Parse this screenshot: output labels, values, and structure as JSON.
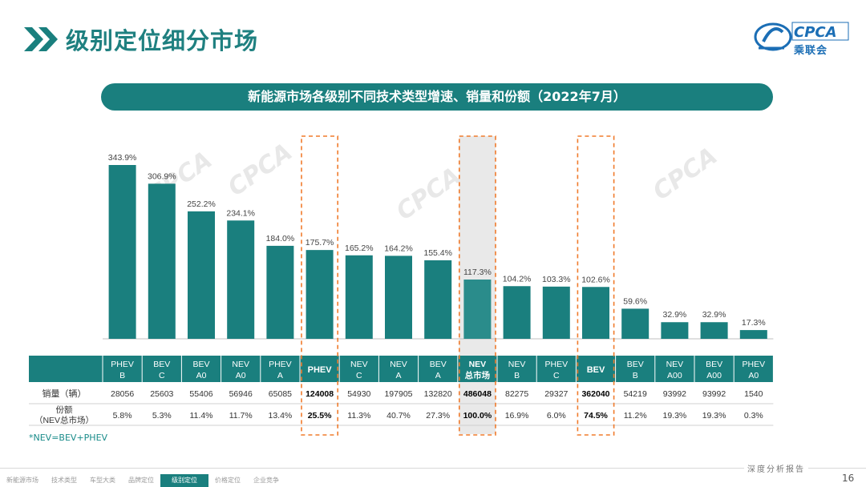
{
  "header": {
    "page_title": "级别定位细分市场",
    "logo_text": "CPCA",
    "logo_cn": "乘联会",
    "banner_title": "新能源市场各级别不同技术类型增速、销量和份额（2022年7月）"
  },
  "chart_data": {
    "type": "bar",
    "title": "新能源市场各级别不同技术类型增速、销量和份额（2022年7月）",
    "categories": [
      [
        "PHEV",
        "B"
      ],
      [
        "BEV",
        "C"
      ],
      [
        "BEV",
        "A0"
      ],
      [
        "NEV",
        "A0"
      ],
      [
        "PHEV",
        "A"
      ],
      [
        "PHEV"
      ],
      [
        "NEV",
        "C"
      ],
      [
        "NEV",
        "A"
      ],
      [
        "BEV",
        "A"
      ],
      [
        "NEV",
        "总市场"
      ],
      [
        "NEV",
        "B"
      ],
      [
        "PHEV",
        "C"
      ],
      [
        "BEV"
      ],
      [
        "BEV",
        "B"
      ],
      [
        "NEV",
        "A00"
      ],
      [
        "BEV",
        "A00"
      ],
      [
        "PHEV",
        "A0"
      ]
    ],
    "growth_values": [
      343.9,
      306.9,
      252.2,
      234.1,
      184.0,
      175.7,
      165.2,
      164.2,
      155.4,
      117.3,
      104.2,
      103.3,
      102.6,
      59.6,
      32.9,
      32.9,
      17.3
    ],
    "growth_labels": [
      "343.9%",
      "306.9%",
      "252.2%",
      "234.1%",
      "184.0%",
      "175.7%",
      "165.2%",
      "164.2%",
      "155.4%",
      "117.3%",
      "104.2%",
      "103.3%",
      "102.6%",
      "59.6%",
      "32.9%",
      "32.9%",
      "17.3%"
    ],
    "sales": [
      "28056",
      "25603",
      "55406",
      "56946",
      "65085",
      "124008",
      "54930",
      "197905",
      "132820",
      "486048",
      "82275",
      "29327",
      "362040",
      "54219",
      "93992",
      "93992",
      "1540"
    ],
    "shares": [
      "5.8%",
      "5.3%",
      "11.4%",
      "11.7%",
      "13.4%",
      "25.5%",
      "11.3%",
      "40.7%",
      "27.3%",
      "100.0%",
      "16.9%",
      "6.0%",
      "74.5%",
      "11.2%",
      "19.3%",
      "19.3%",
      "0.3%"
    ],
    "highlight_indices": [
      5,
      9,
      12
    ],
    "bold_indices": [
      5,
      9,
      12
    ],
    "row_labels": {
      "sales": "销量（辆）",
      "share_line1": "份额",
      "share_line2": "（NEV总市场）"
    },
    "ylim": [
      0,
      343.9
    ],
    "colors": {
      "bar": "#1a7f7e",
      "bar_total": "#2a8c8b",
      "header": "#1a7f7e",
      "highlight_box": "#f07b2c",
      "total_shade": "#cfcfcf"
    }
  },
  "footnote": "*NEV=BEV+PHEV",
  "footer": {
    "report_type": "深度分析报告",
    "page_number": "16",
    "nav_items": [
      "新能源市场",
      "技术类型",
      "车型大类",
      "品牌定位",
      "级别定位",
      "价格定位",
      "企业竞争"
    ],
    "active_nav_index": 4
  }
}
